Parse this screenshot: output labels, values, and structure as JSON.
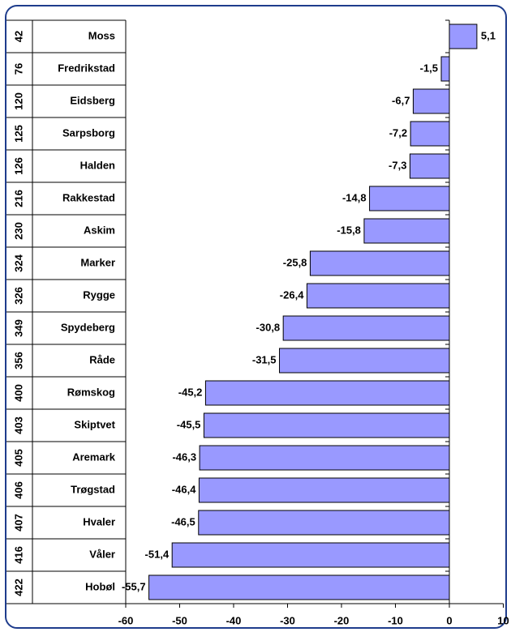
{
  "chart_data": {
    "type": "bar",
    "orientation": "horizontal",
    "ranks": [
      42,
      76,
      120,
      125,
      126,
      216,
      230,
      324,
      326,
      349,
      356,
      400,
      403,
      405,
      406,
      407,
      416,
      422
    ],
    "categories": [
      "Moss",
      "Fredrikstad",
      "Eidsberg",
      "Sarpsborg",
      "Halden",
      "Rakkestad",
      "Askim",
      "Marker",
      "Rygge",
      "Spydeberg",
      "Råde",
      "Rømskog",
      "Skiptvet",
      "Aremark",
      "Trøgstad",
      "Hvaler",
      "Våler",
      "Hobøl"
    ],
    "values": [
      5.1,
      -1.5,
      -6.7,
      -7.2,
      -7.3,
      -14.8,
      -15.8,
      -25.8,
      -26.4,
      -30.8,
      -31.5,
      -45.2,
      -45.5,
      -46.3,
      -46.4,
      -46.5,
      -51.4,
      -55.7
    ],
    "value_labels": [
      "5,1",
      "-1,5",
      "-6,7",
      "-7,2",
      "-7,3",
      "-14,8",
      "-15,8",
      "-25,8",
      "-26,4",
      "-30,8",
      "-31,5",
      "-45,2",
      "-45,5",
      "-46,3",
      "-46,4",
      "-46,5",
      "-51,4",
      "-55,7"
    ],
    "color": "#9999ff",
    "xlim": [
      -60,
      10
    ],
    "xticks": [
      -60,
      -50,
      -40,
      -30,
      -20,
      -10,
      0,
      10
    ]
  }
}
